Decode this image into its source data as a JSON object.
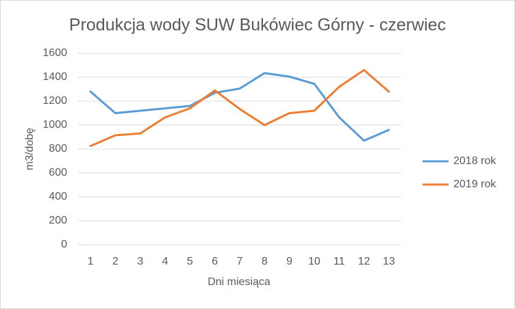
{
  "chart_data": {
    "type": "line",
    "title": "Produkcja wody SUW Bukówiec Górny - czerwiec",
    "x_label": "Dni miesiąca",
    "y_label": "m3/dobę",
    "categories": [
      "1",
      "2",
      "3",
      "4",
      "5",
      "6",
      "7",
      "8",
      "9",
      "10",
      "11",
      "12",
      "13"
    ],
    "series": [
      {
        "name": "2018 rok",
        "color": "#5b9bd5",
        "values": [
          1280,
          1100,
          1120,
          1140,
          1160,
          1270,
          1305,
          1435,
          1405,
          1345,
          1065,
          870,
          960
        ]
      },
      {
        "name": "2019 rok",
        "color": "#ed7d31",
        "values": [
          825,
          915,
          930,
          1065,
          1140,
          1290,
          1135,
          1000,
          1100,
          1120,
          1320,
          1460,
          1280
        ]
      }
    ],
    "ylim": [
      0,
      1600
    ],
    "yticks": [
      0,
      200,
      400,
      600,
      800,
      1000,
      1200,
      1400,
      1600
    ],
    "grid": true,
    "legend": "right"
  }
}
